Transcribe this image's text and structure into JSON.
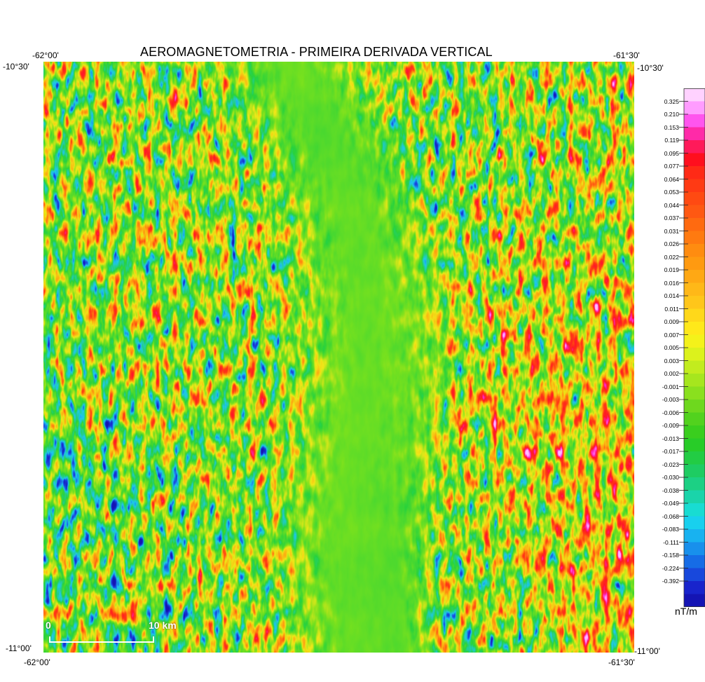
{
  "title": "AEROMAGNETOMETRIA - PRIMEIRA DERIVADA VERTICAL",
  "coordinates": {
    "top_left_lon": "-62°00'",
    "top_right_lon": "-61°30'",
    "top_left_lat": "-10°30'",
    "top_right_lat": "-10°30'",
    "bottom_left_lat": "-11°00'",
    "bottom_right_lat": "-11°00'",
    "bottom_left_lon": "-62°00'",
    "bottom_right_lon": "-61°30'"
  },
  "scalebar": {
    "start": "0",
    "end": "10 km"
  },
  "legend": {
    "unit": "nT/m",
    "labels": [
      "0.325",
      "0.210",
      "0.153",
      "0.119",
      "0.095",
      "0.077",
      "0.064",
      "0.053",
      "0.044",
      "0.037",
      "0.031",
      "0.026",
      "0.022",
      "0.019",
      "0.016",
      "0.014",
      "0.011",
      "0.009",
      "0.007",
      "0.005",
      "0.003",
      "0.002",
      "-0.001",
      "-0.003",
      "-0.006",
      "-0.009",
      "-0.013",
      "-0.017",
      "-0.023",
      "-0.030",
      "-0.038",
      "-0.049",
      "-0.068",
      "-0.083",
      "-0.111",
      "-0.158",
      "-0.224",
      "-0.392"
    ],
    "colors": [
      "#ffd2ff",
      "#ff9cff",
      "#ff55ee",
      "#ff2aa8",
      "#ff1a5a",
      "#ff0f1e",
      "#ff2a16",
      "#ff3a14",
      "#ff4a12",
      "#ff5812",
      "#ff6a10",
      "#ff7a10",
      "#ff8c10",
      "#ff9a10",
      "#ffa814",
      "#ffb818",
      "#ffc61a",
      "#ffd81a",
      "#ffe81a",
      "#f4f21a",
      "#dcf21c",
      "#c2ec1e",
      "#a6e61e",
      "#8ae01e",
      "#6ed81e",
      "#52d21e",
      "#3ace1e",
      "#28cc28",
      "#22cc44",
      "#1ecc62",
      "#1cd084",
      "#1ad4aa",
      "#18dcd2",
      "#18d0ee",
      "#18b2f0",
      "#1890ec",
      "#166ce6",
      "#1848dc",
      "#1824cc",
      "#1414b4"
    ]
  },
  "colors": {
    "field_blue": "#1a2bd0",
    "field_cyan": "#22d6f0",
    "field_green": "#2cd62a",
    "field_yellow": "#f0e818",
    "field_orange": "#ff9a10",
    "field_red": "#ff1a14",
    "field_magenta": "#ff2ad0"
  }
}
